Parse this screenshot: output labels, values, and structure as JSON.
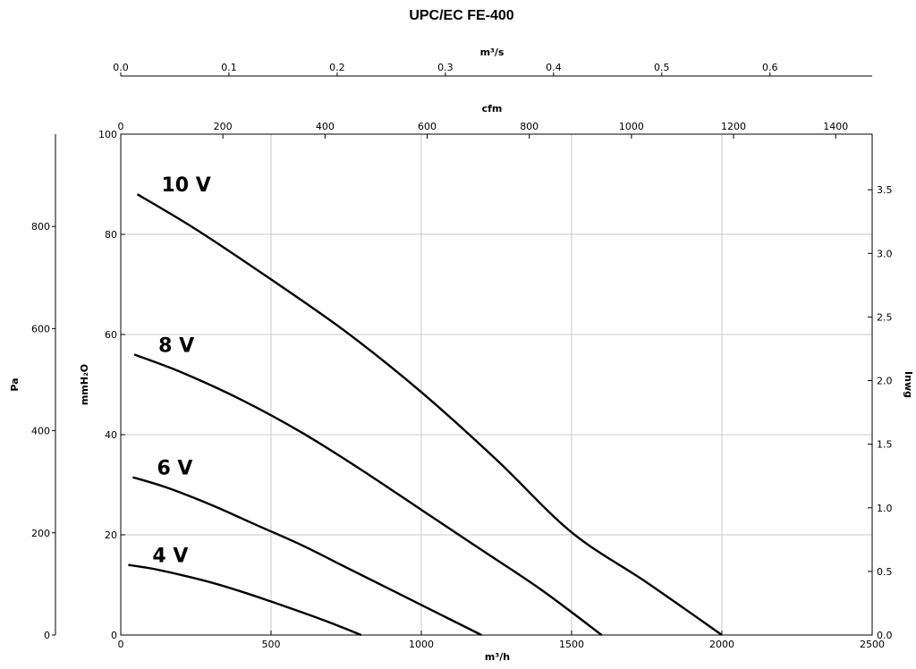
{
  "chart_data": {
    "type": "line",
    "title": "UPC/EC FE-400",
    "axes": {
      "x_bottom": {
        "label": "m³/h",
        "range": [
          0,
          2500
        ],
        "ticks": [
          0,
          500,
          1000,
          1500,
          2000,
          2500
        ]
      },
      "x_top_m3s": {
        "label": "m³/s",
        "ticks": [
          0.0,
          0.1,
          0.2,
          0.3,
          0.4,
          0.5,
          0.6
        ],
        "tick_labels": [
          "0.0",
          "0.1",
          "0.2",
          "0.3",
          "0.4",
          "0.5",
          "0.6"
        ]
      },
      "x_top_cfm": {
        "label": "cfm",
        "ticks": [
          0,
          200,
          400,
          600,
          800,
          1000,
          1200,
          1400
        ]
      },
      "y_left_mmh2o": {
        "label": "mmH₂O",
        "range": [
          0,
          100
        ],
        "ticks": [
          0,
          20,
          40,
          60,
          80,
          100
        ]
      },
      "y_left_pa": {
        "label": "Pa",
        "ticks": [
          0,
          200,
          400,
          600,
          800
        ]
      },
      "y_right_inwg": {
        "label": "Inwg",
        "ticks": [
          0.0,
          0.5,
          1.0,
          1.5,
          2.0,
          2.5,
          3.0,
          3.5
        ],
        "tick_labels": [
          "0.0",
          "0.5",
          "1.0",
          "1.5",
          "2.0",
          "2.5",
          "3.0",
          "3.5"
        ]
      }
    },
    "grid": true,
    "series": [
      {
        "name": "10 V",
        "points": [
          [
            55,
            88
          ],
          [
            250,
            81
          ],
          [
            500,
            71
          ],
          [
            750,
            60.5
          ],
          [
            1000,
            48.5
          ],
          [
            1250,
            35
          ],
          [
            1500,
            20.5
          ],
          [
            1750,
            10.5
          ],
          [
            2000,
            0
          ]
        ]
      },
      {
        "name": "8 V",
        "points": [
          [
            45,
            56
          ],
          [
            200,
            52.5
          ],
          [
            400,
            47
          ],
          [
            600,
            40.5
          ],
          [
            800,
            33
          ],
          [
            1000,
            25
          ],
          [
            1200,
            17
          ],
          [
            1400,
            9
          ],
          [
            1600,
            0
          ]
        ]
      },
      {
        "name": "6 V",
        "points": [
          [
            40,
            31.5
          ],
          [
            150,
            29.5
          ],
          [
            300,
            26
          ],
          [
            450,
            22
          ],
          [
            600,
            18
          ],
          [
            750,
            13.5
          ],
          [
            900,
            9
          ],
          [
            1050,
            4.5
          ],
          [
            1200,
            0
          ]
        ]
      },
      {
        "name": "4 V",
        "points": [
          [
            25,
            14
          ],
          [
            100,
            13.3
          ],
          [
            200,
            12
          ],
          [
            300,
            10.5
          ],
          [
            400,
            8.7
          ],
          [
            500,
            6.7
          ],
          [
            600,
            4.6
          ],
          [
            700,
            2.4
          ],
          [
            800,
            0
          ]
        ]
      }
    ]
  }
}
